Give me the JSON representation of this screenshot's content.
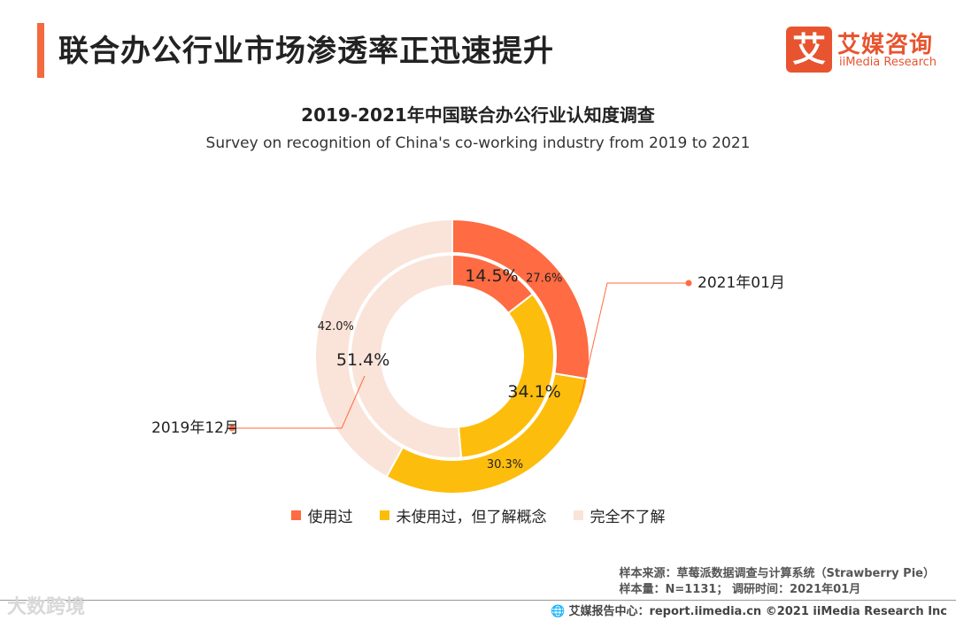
{
  "header": {
    "title": "联合办公行业市场渗透率正迅速提升",
    "logo_mark": "艾",
    "logo_cn": "艾媒咨询",
    "logo_en": "iiMedia Research"
  },
  "chart_data": {
    "type": "pie",
    "variant": "nested-donut",
    "title": "2019-2021年中国联合办公行业认知度调查",
    "subtitle": "Survey on recognition of China's co-working industry from 2019 to 2021",
    "categories": [
      "使用过",
      "未使用过，但了解概念",
      "完全不了解"
    ],
    "colors": [
      "#ff6b42",
      "#fdbd0c",
      "#fae3d8"
    ],
    "series": [
      {
        "name": "2021年01月",
        "ring": "outer",
        "values": [
          27.6,
          30.3,
          42.0
        ],
        "labels": [
          "27.6%",
          "30.3%",
          "42.0%"
        ]
      },
      {
        "name": "2019年12月",
        "ring": "inner",
        "values": [
          14.5,
          34.1,
          51.4
        ],
        "labels": [
          "14.5%",
          "34.1%",
          "51.4%"
        ]
      }
    ],
    "legend_position": "bottom"
  },
  "source": {
    "line1": "样本来源：草莓派数据调查与计算系统（Strawberry Pie）",
    "line2": "样本量：N=1131；  调研时间：2021年01月"
  },
  "footer": {
    "text": "艾媒报告中心：report.iimedia.cn   ©2021  iiMedia Research  Inc"
  },
  "watermark": "大数跨境"
}
